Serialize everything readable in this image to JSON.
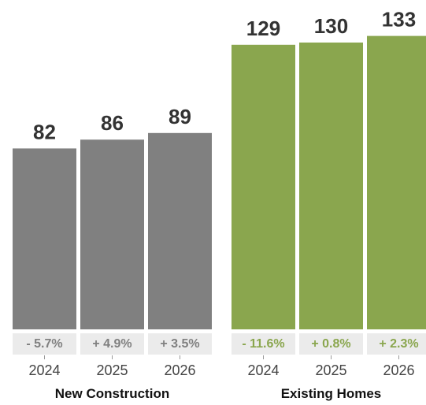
{
  "chart_data": {
    "type": "bar",
    "ylim": [
      0,
      135
    ],
    "groups": [
      {
        "name": "New Construction",
        "color": "#808080",
        "change_color": "#808080",
        "categories": [
          "2024",
          "2025",
          "2026"
        ],
        "values": [
          82,
          86,
          89
        ],
        "changes": [
          "- 5.7%",
          "+ 4.9%",
          "+ 3.5%"
        ]
      },
      {
        "name": "Existing Homes",
        "color": "#8aa64e",
        "change_color": "#8aa64e",
        "categories": [
          "2024",
          "2025",
          "2026"
        ],
        "values": [
          129,
          130,
          133
        ],
        "changes": [
          "- 11.6%",
          "+ 0.8%",
          "+ 2.3%"
        ]
      }
    ]
  }
}
